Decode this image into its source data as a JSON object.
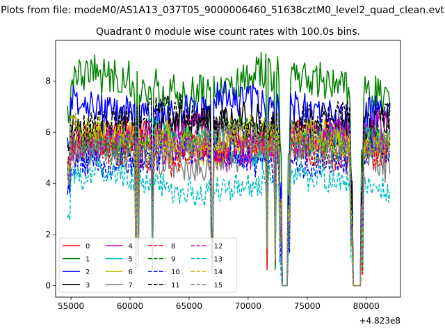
{
  "figure": {
    "suptitle": "Plots from file: modeM0/AS1A13_037T05_9000006460_51638cztM0_level2_quad_clean.evt",
    "title": "Quadrant 0 module wise count rates with 100.0s bins."
  },
  "chart_data": {
    "type": "line",
    "title": "Quadrant 0 module wise count rates with 100.0s bins.",
    "xlabel": "",
    "ylabel": "",
    "x_offset_label": "+4.823e8",
    "xlim": [
      53700,
      82900
    ],
    "ylim": [
      -0.45,
      9.6
    ],
    "xticks": [
      55000,
      60000,
      65000,
      70000,
      75000,
      80000
    ],
    "xtick_labels": [
      "55000",
      "60000",
      "65000",
      "70000",
      "75000",
      "80000"
    ],
    "yticks": [
      0,
      2,
      4,
      6,
      8
    ],
    "ytick_labels": [
      "0",
      "2",
      "4",
      "6",
      "8"
    ],
    "grid": false,
    "legend_position": "lower-left",
    "legend_columns": 4,
    "x_range": [
      54700,
      82000
    ],
    "bin_size": 100,
    "gaps": [
      [
        72900,
        73300
      ],
      [
        78900,
        79500
      ]
    ],
    "dips": [
      60500,
      60700,
      61900,
      66900,
      67000,
      71600,
      72300
    ],
    "series": [
      {
        "name": "0",
        "color": "#ff0000",
        "dash": "solid",
        "level": 5.6
      },
      {
        "name": "1",
        "color": "#008000",
        "dash": "solid",
        "level": 7.9
      },
      {
        "name": "2",
        "color": "#0000ff",
        "dash": "solid",
        "level": 6.9
      },
      {
        "name": "3",
        "color": "#000000",
        "dash": "solid",
        "level": 6.2
      },
      {
        "name": "4",
        "color": "#bf00bf",
        "dash": "solid",
        "level": 5.9
      },
      {
        "name": "5",
        "color": "#00bfbf",
        "dash": "solid",
        "level": 5.5
      },
      {
        "name": "6",
        "color": "#bfbf00",
        "dash": "solid",
        "level": 5.6
      },
      {
        "name": "7",
        "color": "#808080",
        "dash": "solid",
        "level": 5.1
      },
      {
        "name": "8",
        "color": "#ff0000",
        "dash": "dashed",
        "level": 5.3
      },
      {
        "name": "9",
        "color": "#008000",
        "dash": "dashed",
        "level": 5.7
      },
      {
        "name": "10",
        "color": "#0000ff",
        "dash": "dashed",
        "level": 5.0
      },
      {
        "name": "11",
        "color": "#000000",
        "dash": "dashed",
        "level": 6.4
      },
      {
        "name": "12",
        "color": "#bf00bf",
        "dash": "dashed",
        "level": 5.5
      },
      {
        "name": "13",
        "color": "#00bfbf",
        "dash": "dashed",
        "level": 4.0
      },
      {
        "name": "14",
        "color": "#bfbf00",
        "dash": "dashed",
        "level": 5.8
      },
      {
        "name": "15",
        "color": "#808080",
        "dash": "dashed",
        "level": 5.4
      }
    ]
  }
}
